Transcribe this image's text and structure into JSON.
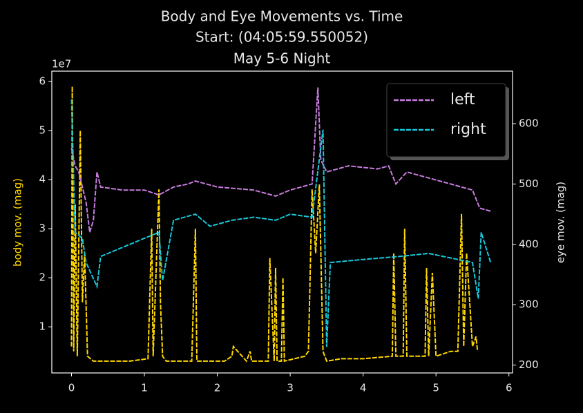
{
  "chart_data": {
    "type": "line",
    "title": "Body and Eye Movements vs. Time",
    "subtitle": "Start: (04:05:59.550052)",
    "caption": "May 5-6 Night",
    "y_label": "body mov. (mag)",
    "y2_label": "eye mov. (mag)",
    "y_offset_label": "1e7",
    "xlim": [
      -0.27,
      6.05
    ],
    "xticks": [
      0,
      1,
      2,
      3,
      4,
      5,
      6
    ],
    "ylim": [
      0.06,
      6.21
    ],
    "yticks": [
      1,
      2,
      3,
      4,
      5,
      6
    ],
    "y2lim": [
      187,
      687
    ],
    "y2ticks": [
      200,
      300,
      400,
      500,
      600
    ],
    "linestyle": "dashed",
    "legend": "upper right",
    "series": [
      {
        "name": "body",
        "color": "#ffd700",
        "axis": "y",
        "x": [
          0,
          0.01,
          0.03,
          0.05,
          0.08,
          0.12,
          0.15,
          0.18,
          0.22,
          0.3,
          0.5,
          0.8,
          1.05,
          1.1,
          1.12,
          1.2,
          1.22,
          1.25,
          1.3,
          1.65,
          1.7,
          1.72,
          2.1,
          2.2,
          2.22,
          2.4,
          2.45,
          2.47,
          2.7,
          2.72,
          2.78,
          2.8,
          2.82,
          2.88,
          2.9,
          2.92,
          3.2,
          3.25,
          3.3,
          3.35,
          3.4,
          3.45,
          3.5,
          3.7,
          4.0,
          4.4,
          4.42,
          4.45,
          4.55,
          4.57,
          4.6,
          4.85,
          4.87,
          4.9,
          4.95,
          5.0,
          5.2,
          5.3,
          5.35,
          5.38,
          5.42,
          5.5,
          5.55,
          5.57
        ],
        "values": [
          0.6,
          5.9,
          0.5,
          3.5,
          0.4,
          5.0,
          1.5,
          2.5,
          0.4,
          0.3,
          0.3,
          0.3,
          0.35,
          3.0,
          0.4,
          3.8,
          1.5,
          0.4,
          0.3,
          0.3,
          3.0,
          0.3,
          0.3,
          0.4,
          0.6,
          0.3,
          0.5,
          0.3,
          0.3,
          2.4,
          0.3,
          2.2,
          0.3,
          0.3,
          2.0,
          0.3,
          0.4,
          0.5,
          3.8,
          2.5,
          3.9,
          0.5,
          0.3,
          0.35,
          0.35,
          0.4,
          2.5,
          0.4,
          0.4,
          3.0,
          0.4,
          0.4,
          2.2,
          0.4,
          2.1,
          0.4,
          0.5,
          0.5,
          3.3,
          0.6,
          2.5,
          0.6,
          0.8,
          0.5
        ]
      },
      {
        "name": "left",
        "color": "#c87ddf",
        "axis": "y2",
        "legend": true,
        "x": [
          0,
          0.05,
          0.1,
          0.2,
          0.25,
          0.3,
          0.35,
          0.4,
          0.7,
          1.0,
          1.2,
          1.4,
          1.6,
          1.7,
          2.0,
          2.5,
          2.8,
          3.0,
          3.3,
          3.38,
          3.42,
          3.5,
          3.8,
          4.2,
          4.35,
          4.45,
          4.6,
          4.9,
          5.2,
          5.5,
          5.6,
          5.75
        ],
        "values": [
          560,
          530,
          520,
          470,
          420,
          440,
          520,
          495,
          490,
          490,
          482,
          495,
          500,
          505,
          495,
          490,
          480,
          490,
          500,
          660,
          540,
          520,
          530,
          525,
          530,
          500,
          520,
          510,
          500,
          490,
          460,
          455
        ]
      },
      {
        "name": "right",
        "color": "#17c8da",
        "axis": "y2",
        "legend": true,
        "x": [
          0,
          0.05,
          0.15,
          0.2,
          0.35,
          0.4,
          0.8,
          1.0,
          1.2,
          1.25,
          1.4,
          1.7,
          1.9,
          2.2,
          2.5,
          2.8,
          3.0,
          3.3,
          3.45,
          3.5,
          3.55,
          4.0,
          4.5,
          4.9,
          5.3,
          5.5,
          5.58,
          5.62,
          5.75
        ],
        "values": [
          640,
          420,
          410,
          370,
          330,
          380,
          400,
          410,
          420,
          340,
          440,
          450,
          430,
          440,
          445,
          440,
          450,
          445,
          590,
          230,
          370,
          375,
          380,
          385,
          375,
          370,
          310,
          420,
          370
        ]
      }
    ]
  }
}
